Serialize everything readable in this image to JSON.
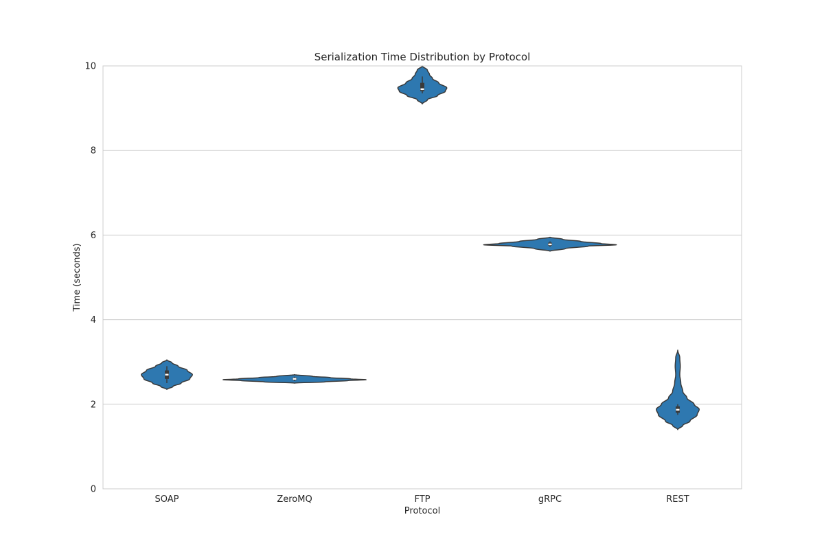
{
  "chart_data": {
    "type": "violin",
    "title": "Serialization Time Distribution by Protocol",
    "xlabel": "Protocol",
    "ylabel": "Time (seconds)",
    "ylim": [
      0,
      10
    ],
    "yticks": [
      "0",
      "2",
      "4",
      "6",
      "8",
      "10"
    ],
    "grid": "horizontal",
    "colors": {
      "violin_fill": "#2e78b0",
      "violin_stroke": "#3a3a3a",
      "inner_box": "#3a3a3a",
      "median": "#ffffff",
      "grid": "#cccccc",
      "frame": "#cccccc"
    },
    "categories": [
      "SOAP",
      "ZeroMQ",
      "FTP",
      "gRPC",
      "REST"
    ],
    "series": [
      {
        "category": "SOAP",
        "median": 2.7,
        "q1": 2.6,
        "q3": 2.8,
        "whisker_low": 2.5,
        "whisker_high": 2.9,
        "profile": [
          [
            2.35,
            0.0
          ],
          [
            2.42,
            0.12
          ],
          [
            2.5,
            0.28
          ],
          [
            2.6,
            0.45
          ],
          [
            2.7,
            0.5
          ],
          [
            2.8,
            0.4
          ],
          [
            2.9,
            0.22
          ],
          [
            2.98,
            0.1
          ],
          [
            3.05,
            0.0
          ]
        ]
      },
      {
        "category": "ZeroMQ",
        "median": 2.6,
        "q1": 2.57,
        "q3": 2.63,
        "whisker_low": 2.55,
        "whisker_high": 2.65,
        "profile": [
          [
            2.5,
            0.0
          ],
          [
            2.53,
            0.6
          ],
          [
            2.56,
            1.05
          ],
          [
            2.58,
            1.4
          ],
          [
            2.6,
            1.1
          ],
          [
            2.63,
            0.7
          ],
          [
            2.66,
            0.35
          ],
          [
            2.7,
            0.0
          ]
        ]
      },
      {
        "category": "FTP",
        "median": 9.45,
        "q1": 9.4,
        "q3": 9.6,
        "whisker_low": 9.35,
        "whisker_high": 9.75,
        "profile": [
          [
            9.1,
            0.0
          ],
          [
            9.2,
            0.1
          ],
          [
            9.3,
            0.3
          ],
          [
            9.4,
            0.45
          ],
          [
            9.48,
            0.48
          ],
          [
            9.6,
            0.32
          ],
          [
            9.7,
            0.2
          ],
          [
            9.8,
            0.14
          ],
          [
            9.9,
            0.1
          ],
          [
            10.0,
            0.0
          ]
        ]
      },
      {
        "category": "gRPC",
        "median": 5.78,
        "q1": 5.75,
        "q3": 5.82,
        "whisker_low": 5.72,
        "whisker_high": 5.85,
        "profile": [
          [
            5.62,
            0.0
          ],
          [
            5.68,
            0.3
          ],
          [
            5.74,
            0.75
          ],
          [
            5.77,
            1.3
          ],
          [
            5.8,
            1.0
          ],
          [
            5.85,
            0.6
          ],
          [
            5.9,
            0.25
          ],
          [
            5.95,
            0.0
          ]
        ]
      },
      {
        "category": "REST",
        "median": 1.87,
        "q1": 1.8,
        "q3": 1.95,
        "whisker_low": 1.75,
        "whisker_high": 2.0,
        "profile": [
          [
            1.4,
            0.0
          ],
          [
            1.5,
            0.1
          ],
          [
            1.6,
            0.24
          ],
          [
            1.75,
            0.38
          ],
          [
            1.88,
            0.42
          ],
          [
            2.0,
            0.32
          ],
          [
            2.15,
            0.18
          ],
          [
            2.3,
            0.1
          ],
          [
            2.5,
            0.06
          ],
          [
            2.7,
            0.04
          ],
          [
            2.9,
            0.05
          ],
          [
            3.1,
            0.04
          ],
          [
            3.28,
            0.0
          ]
        ]
      }
    ]
  }
}
